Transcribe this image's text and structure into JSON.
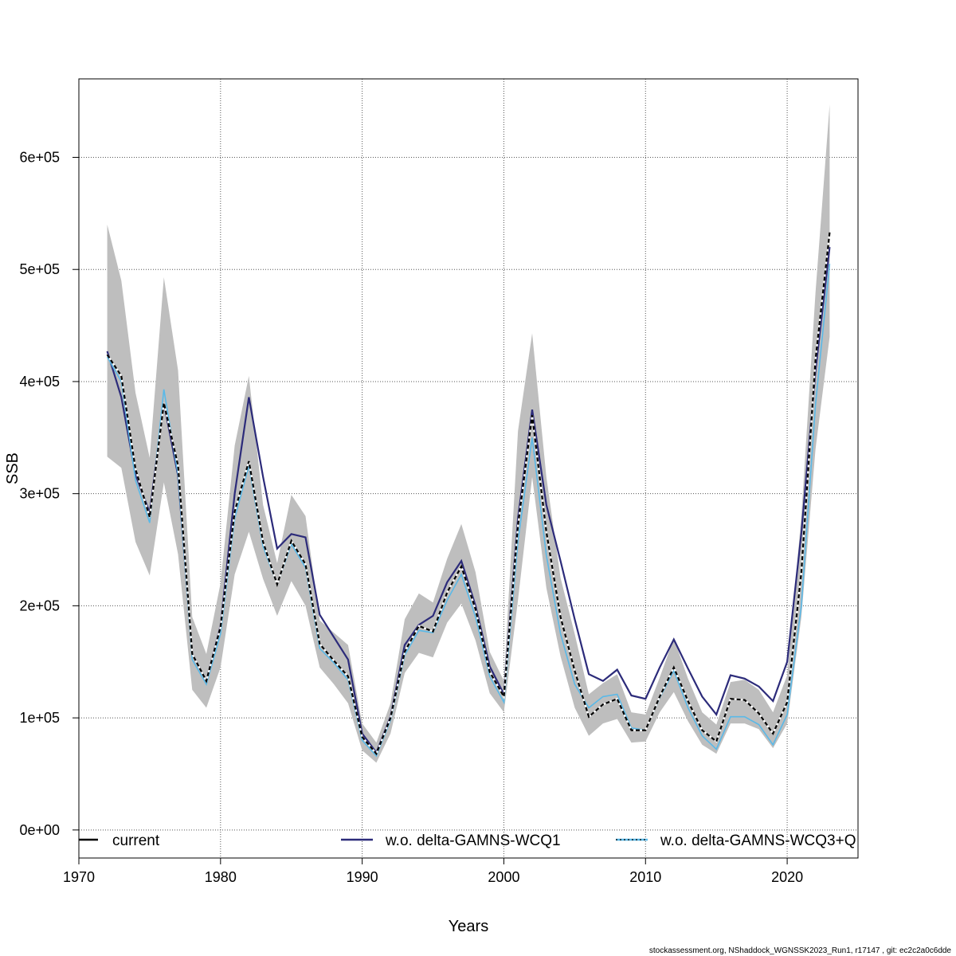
{
  "chart_data": {
    "type": "line",
    "xlabel": "Years",
    "ylabel": "SSB",
    "xlim": [
      1970,
      2025
    ],
    "ylim": [
      -25000,
      670000
    ],
    "x_ticks": [
      1970,
      1980,
      1990,
      2000,
      2010,
      2020
    ],
    "y_ticks": [
      0,
      100000,
      200000,
      300000,
      400000,
      500000,
      600000
    ],
    "y_tick_labels": [
      "0e+00",
      "1e+05",
      "2e+05",
      "3e+05",
      "4e+05",
      "5e+05",
      "6e+05"
    ],
    "grid": true,
    "legend_position": "bottom",
    "x": [
      1972,
      1973,
      1974,
      1975,
      1976,
      1977,
      1978,
      1979,
      1980,
      1981,
      1982,
      1983,
      1984,
      1985,
      1986,
      1987,
      1988,
      1989,
      1990,
      1991,
      1992,
      1993,
      1994,
      1995,
      1996,
      1997,
      1998,
      1999,
      2000,
      2001,
      2002,
      2003,
      2004,
      2005,
      2006,
      2007,
      2008,
      2009,
      2010,
      2011,
      2012,
      2013,
      2014,
      2015,
      2016,
      2017,
      2018,
      2019,
      2020,
      2021,
      2022,
      2023
    ],
    "band": {
      "lower": [
        333000,
        323000,
        257000,
        227000,
        310000,
        246000,
        125000,
        109000,
        145000,
        228000,
        266000,
        224000,
        191000,
        222000,
        200000,
        145000,
        130000,
        113000,
        71000,
        60000,
        86000,
        140000,
        158000,
        154000,
        185000,
        202000,
        169000,
        122000,
        105000,
        205000,
        315000,
        216000,
        155000,
        109000,
        84000,
        95000,
        99000,
        78000,
        79000,
        105000,
        123000,
        97000,
        76000,
        68000,
        95000,
        95000,
        90000,
        73000,
        95000,
        190000,
        340000,
        440000
      ],
      "upper": [
        540000,
        490000,
        390000,
        332000,
        493000,
        410000,
        190000,
        157000,
        220000,
        343000,
        405000,
        290000,
        238000,
        299000,
        280000,
        187000,
        176000,
        165000,
        95000,
        78000,
        113000,
        188000,
        211000,
        203000,
        242000,
        273000,
        230000,
        159000,
        133000,
        356000,
        443000,
        315000,
        225000,
        175000,
        121000,
        131000,
        139000,
        105000,
        103000,
        136000,
        171000,
        135000,
        105000,
        94000,
        132000,
        134000,
        125000,
        105000,
        138000,
        280000,
        480000,
        647000
      ]
    },
    "series": [
      {
        "name": "current",
        "color": "#000000",
        "style": "dashed",
        "values": [
          424000,
          405000,
          322000,
          279000,
          381000,
          325000,
          157000,
          133000,
          181000,
          284000,
          329000,
          257000,
          219000,
          258000,
          237000,
          166000,
          151000,
          137000,
          83000,
          68000,
          100000,
          159000,
          182000,
          177000,
          212000,
          235000,
          197000,
          141000,
          119000,
          272000,
          370000,
          266000,
          190000,
          142000,
          101000,
          112000,
          117000,
          89000,
          89000,
          119000,
          145000,
          115000,
          89000,
          79000,
          117000,
          116000,
          104000,
          86000,
          114000,
          230000,
          420000,
          533000
        ]
      },
      {
        "name": "w.o. delta-GAMNS-WCQ1",
        "color": "#2c2b7a",
        "style": "solid",
        "values": [
          427000,
          386000,
          317000,
          283000,
          381000,
          316000,
          157000,
          133000,
          182000,
          300000,
          386000,
          315000,
          251000,
          264000,
          261000,
          192000,
          172000,
          152000,
          86000,
          69000,
          101000,
          165000,
          183000,
          191000,
          221000,
          240000,
          200000,
          146000,
          121000,
          278000,
          375000,
          290000,
          240000,
          188000,
          139000,
          133000,
          143000,
          120000,
          117000,
          145000,
          170000,
          144000,
          119000,
          103000,
          138000,
          135000,
          128000,
          115000,
          150000,
          265000,
          410000,
          520000
        ]
      },
      {
        "name": "w.o. delta-GAMNS-WCQ3+Q",
        "color": "#5ab9e8",
        "style": "solid",
        "values": [
          422000,
          400000,
          312000,
          274000,
          393000,
          317000,
          152000,
          130000,
          175000,
          278000,
          325000,
          253000,
          219000,
          255000,
          234000,
          162000,
          149000,
          134000,
          80000,
          66000,
          98000,
          156000,
          178000,
          176000,
          205000,
          228000,
          190000,
          137000,
          114000,
          258000,
          350000,
          245000,
          175000,
          130000,
          109000,
          119000,
          121000,
          91000,
          89000,
          118000,
          142000,
          109000,
          84000,
          72000,
          101000,
          101000,
          94000,
          76000,
          103000,
          200000,
          380000,
          505000
        ]
      }
    ]
  },
  "footer": "stockassessment.org, NShaddock_WGNSSK2023_Run1, r17147 , git: ec2c2a0c6dde"
}
